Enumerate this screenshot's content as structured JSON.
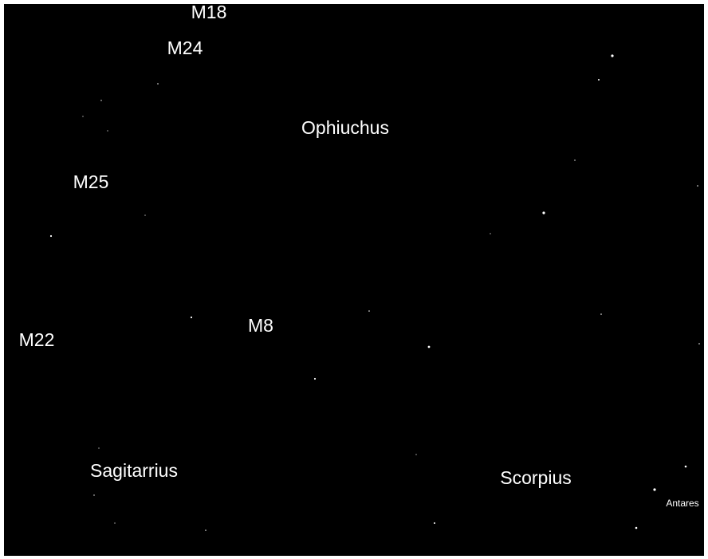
{
  "labels": {
    "m18": "M18",
    "m24": "M24",
    "ophiuchus": "Ophiuchus",
    "m25": "M25",
    "m8": "M8",
    "m22": "M22",
    "sagitarrius": "Sagitarrius",
    "scorpius": "Scorpius",
    "antares": "Antares"
  }
}
